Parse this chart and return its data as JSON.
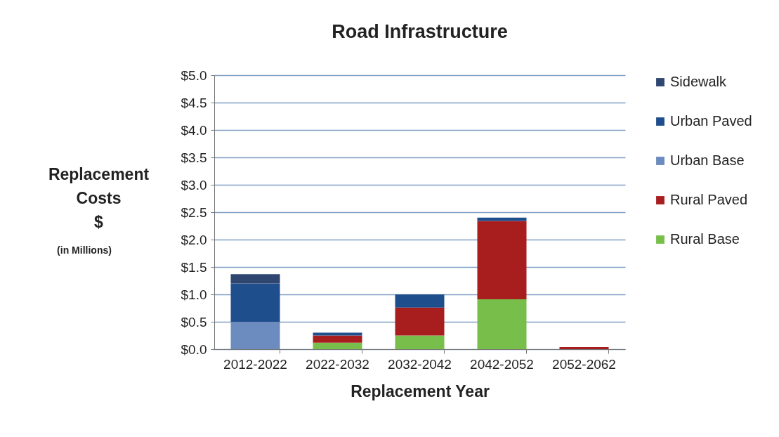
{
  "chart_data": {
    "type": "bar",
    "title": "Road Infrastructure",
    "xlabel": "Replacement Year",
    "ylabel": "Replacement Costs $",
    "annotations": [
      "(in Millions)"
    ],
    "categories": [
      "2012-2022",
      "2022-2032",
      "2032-2042",
      "2042-2052",
      "2052-2062"
    ],
    "stacked": true,
    "series": [
      {
        "name": "Rural Base",
        "color": "#77bf4a",
        "values": [
          0,
          0.12,
          0.25,
          0.91,
          0
        ]
      },
      {
        "name": "Rural Paved",
        "color": "#a81e1e",
        "values": [
          0,
          0.13,
          0.51,
          1.43,
          0.04
        ]
      },
      {
        "name": "Urban Base",
        "color": "#6c8bbf",
        "values": [
          0.5,
          0,
          0,
          0,
          0
        ]
      },
      {
        "name": "Urban Paved",
        "color": "#1f4e8c",
        "values": [
          0.7,
          0.05,
          0.24,
          0.06,
          0
        ]
      },
      {
        "name": "Sidewalk",
        "color": "#2f4670",
        "values": [
          0.17,
          0,
          0,
          0,
          0
        ]
      }
    ],
    "ylim": [
      0,
      5
    ],
    "yticks": [
      {
        "value": 0,
        "label": "$0.0"
      },
      {
        "value": 0.5,
        "label": "$0.5"
      },
      {
        "value": 1,
        "label": "$1.0"
      },
      {
        "value": 1.5,
        "label": "$1.5"
      },
      {
        "value": 2,
        "label": "$2.0"
      },
      {
        "value": 2.5,
        "label": "$2.5"
      },
      {
        "value": 3,
        "label": "$3.0"
      },
      {
        "value": 3.5,
        "label": "$3.5"
      },
      {
        "value": 4,
        "label": "$4.0"
      },
      {
        "value": 4.5,
        "label": "$4.5"
      },
      {
        "value": 5,
        "label": "$5.0"
      }
    ],
    "grid": "y",
    "legend": "right"
  }
}
